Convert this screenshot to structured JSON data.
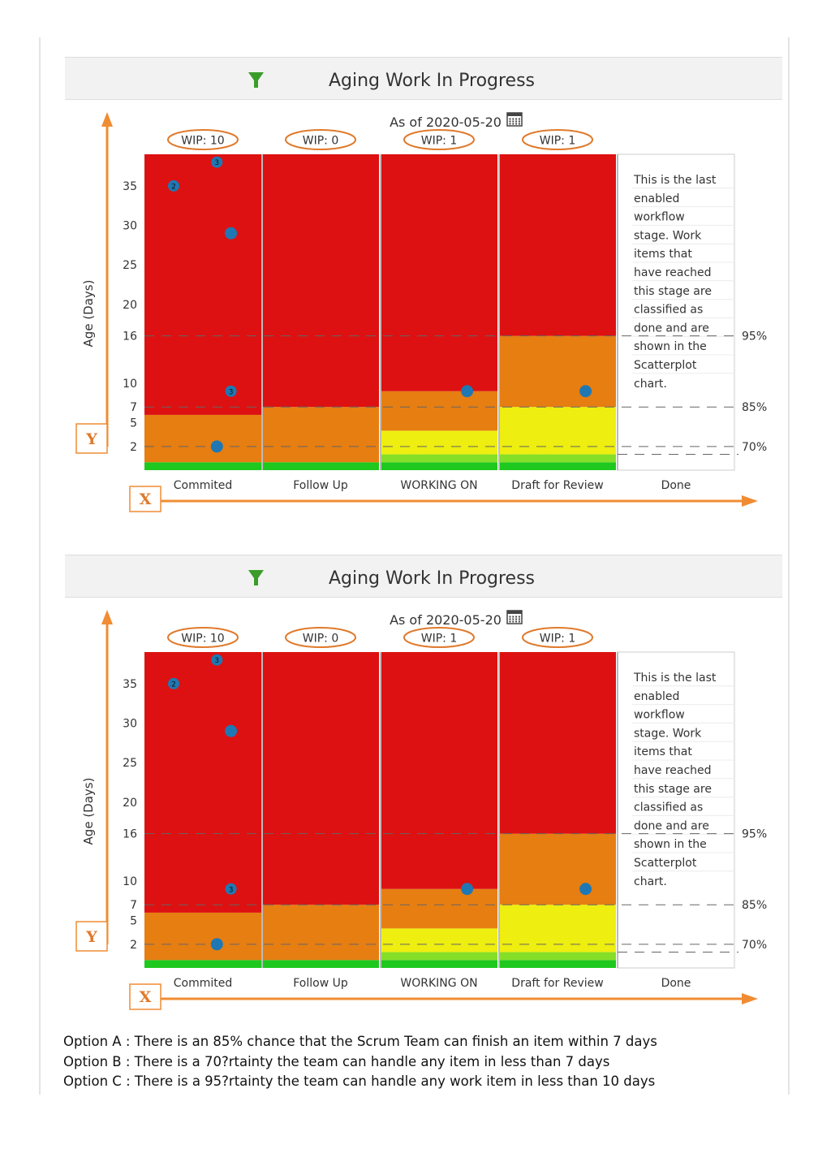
{
  "charts": [
    {
      "title": "Aging Work In Progress",
      "as_of": "As of 2020-05-20",
      "icons": {
        "filter": "filter-funnel-icon",
        "calendar": "calendar-icon"
      },
      "y_axis_label": "Age (Days)",
      "x_marker": "X",
      "y_marker": "Y",
      "done_note": [
        "This is the last",
        "enabled",
        "workflow",
        "stage. Work",
        "items that",
        "have reached",
        "this stage are",
        "classified as",
        "done and are",
        "shown in the",
        "Scatterplot",
        "chart."
      ]
    },
    {
      "title": "Aging Work In Progress",
      "as_of": "As of 2020-05-20",
      "icons": {
        "filter": "filter-funnel-icon",
        "calendar": "calendar-icon"
      },
      "y_axis_label": "Age (Days)",
      "x_marker": "X",
      "y_marker": "Y",
      "done_note": [
        "This is the last",
        "enabled",
        "workflow",
        "stage. Work",
        "items that",
        "have reached",
        "this stage are",
        "classified as",
        "done and are",
        "shown in the",
        "Scatterplot",
        "chart."
      ]
    }
  ],
  "chart_data": {
    "type": "scatter",
    "y_ticks": [
      2,
      5,
      7,
      10,
      16,
      20,
      25,
      30,
      35
    ],
    "ylim": [
      -1,
      39
    ],
    "grid": "dashed at percentile thresholds",
    "percentiles": [
      {
        "label": "95%",
        "value": 16
      },
      {
        "label": "85%",
        "value": 7
      },
      {
        "label": "70%",
        "value": 2
      }
    ],
    "colors": {
      "green": "#1ec81e",
      "light_green": "#85de28",
      "yellow": "#eeee10",
      "orange": "#e67e12",
      "red": "#dd1111",
      "dot": "#1f78b4"
    },
    "categories": [
      {
        "name": "Commited",
        "wip": "WIP: 10",
        "bands": [
          {
            "from": -1,
            "to": 0,
            "color": "#1ec81e"
          },
          {
            "from": 0,
            "to": 6,
            "color": "#e67e12"
          },
          {
            "from": 6,
            "to": 39,
            "color": "#dd1111"
          }
        ],
        "points": [
          {
            "pos": 0.25,
            "age": 35,
            "count": "2"
          },
          {
            "pos": 0.62,
            "age": 38,
            "count": "3"
          },
          {
            "pos": 0.74,
            "age": 29,
            "count": ""
          },
          {
            "pos": 0.74,
            "age": 9,
            "count": "3"
          },
          {
            "pos": 0.62,
            "age": 2,
            "count": ""
          }
        ]
      },
      {
        "name": "Follow Up",
        "wip": "WIP: 0",
        "bands": [
          {
            "from": -1,
            "to": 0,
            "color": "#1ec81e"
          },
          {
            "from": 0,
            "to": 7,
            "color": "#e67e12"
          },
          {
            "from": 7,
            "to": 39,
            "color": "#dd1111"
          }
        ],
        "points": []
      },
      {
        "name": "WORKING ON",
        "wip": "WIP: 1",
        "bands": [
          {
            "from": -1,
            "to": 0,
            "color": "#1ec81e"
          },
          {
            "from": 0,
            "to": 1,
            "color": "#85de28"
          },
          {
            "from": 1,
            "to": 4,
            "color": "#eeee10"
          },
          {
            "from": 4,
            "to": 9,
            "color": "#e67e12"
          },
          {
            "from": 9,
            "to": 39,
            "color": "#dd1111"
          }
        ],
        "points": [
          {
            "pos": 0.74,
            "age": 9,
            "count": ""
          }
        ]
      },
      {
        "name": "Draft for Review",
        "wip": "WIP: 1",
        "bands": [
          {
            "from": -1,
            "to": 0,
            "color": "#1ec81e"
          },
          {
            "from": 0,
            "to": 1,
            "color": "#85de28"
          },
          {
            "from": 1,
            "to": 7,
            "color": "#eeee10"
          },
          {
            "from": 7,
            "to": 16,
            "color": "#e67e12"
          },
          {
            "from": 16,
            "to": 39,
            "color": "#dd1111"
          }
        ],
        "points": [
          {
            "pos": 0.74,
            "age": 9,
            "count": ""
          }
        ]
      },
      {
        "name": "Done",
        "wip": "",
        "bands": [],
        "points": []
      }
    ]
  },
  "options": [
    "Option A : There is an 85% chance that the Scrum Team can finish an item within 7 days",
    "Option B : There is a 70?rtainty the team can handle any item in less than 7 days",
    "Option C : There is a 95?rtainty the team can handle any work item in less than 10 days"
  ]
}
